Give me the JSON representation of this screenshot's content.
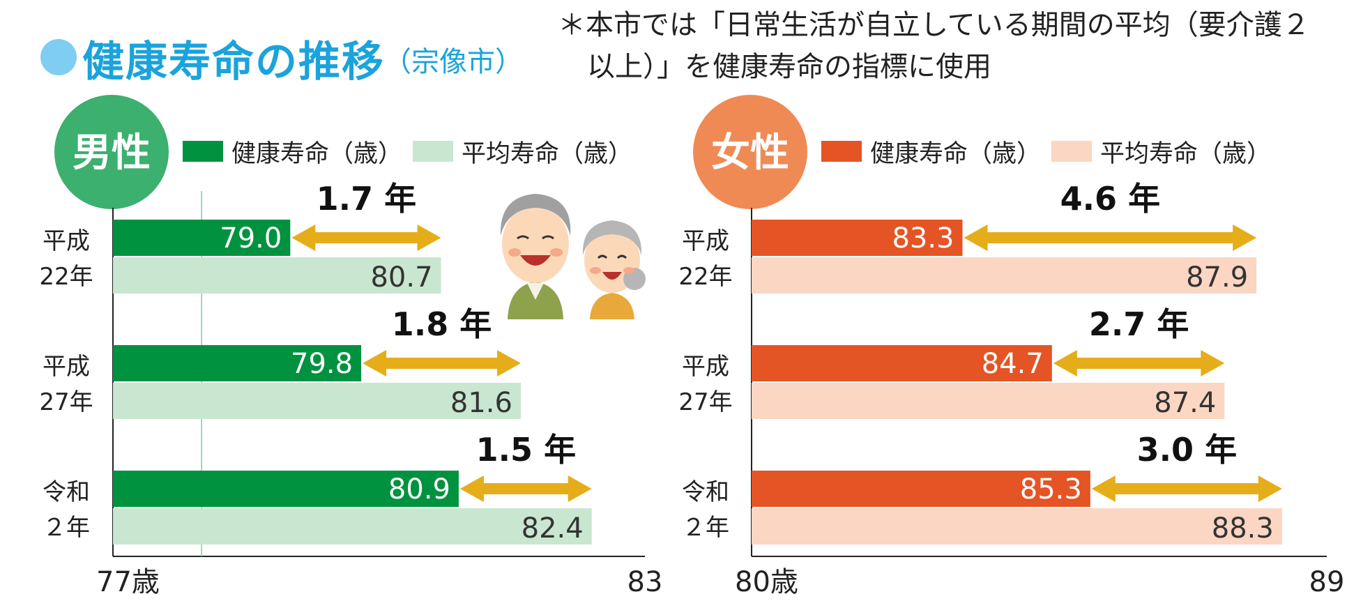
{
  "header": {
    "title": "健康寿命の推移",
    "subtitle": "（宗像市）",
    "note_line1": "＊本市では「日常生活が自立している期間の平均（要介護２",
    "note_line2": "以上）」を健康寿命の指標に使用"
  },
  "chart_data": [
    {
      "type": "bar",
      "badge": "男性",
      "badge_color": "#3cb06e",
      "healthy_color": "#00923f",
      "average_color": "#c9e6d1",
      "arrow_color": "#e5ad1a",
      "xlim": [
        77,
        83
      ],
      "tick_labels": [
        "77歳",
        "83"
      ],
      "legend": [
        "健康寿命（歳）",
        "平均寿命（歳）"
      ],
      "categories": [
        [
          "平成",
          "22年"
        ],
        [
          "平成",
          "27年"
        ],
        [
          "令和",
          "２年"
        ]
      ],
      "series": [
        {
          "name": "健康寿命（歳）",
          "values": [
            79.0,
            79.8,
            80.9
          ],
          "labels": [
            "79.0",
            "79.8",
            "80.9"
          ]
        },
        {
          "name": "平均寿命（歳）",
          "values": [
            80.7,
            81.6,
            82.4
          ],
          "labels": [
            "80.7",
            "81.6",
            "82.4"
          ]
        }
      ],
      "gap_labels": [
        "1.7 年",
        "1.8 年",
        "1.5 年"
      ]
    },
    {
      "type": "bar",
      "badge": "女性",
      "badge_color": "#ef8a55",
      "healthy_color": "#e55424",
      "average_color": "#fbd6c2",
      "arrow_color": "#e5ad1a",
      "xlim": [
        80,
        89
      ],
      "tick_labels": [
        "80歳",
        "89"
      ],
      "legend": [
        "健康寿命（歳）",
        "平均寿命（歳）"
      ],
      "categories": [
        [
          "平成",
          "22年"
        ],
        [
          "平成",
          "27年"
        ],
        [
          "令和",
          "２年"
        ]
      ],
      "series": [
        {
          "name": "健康寿命（歳）",
          "values": [
            83.3,
            84.7,
            85.3
          ],
          "labels": [
            "83.3",
            "84.7",
            "85.3"
          ]
        },
        {
          "name": "平均寿命（歳）",
          "values": [
            87.9,
            87.4,
            88.3
          ],
          "labels": [
            "87.9",
            "87.4",
            "88.3"
          ]
        }
      ],
      "gap_labels": [
        "4.6 年",
        "2.7 年",
        "3.0 年"
      ]
    }
  ]
}
